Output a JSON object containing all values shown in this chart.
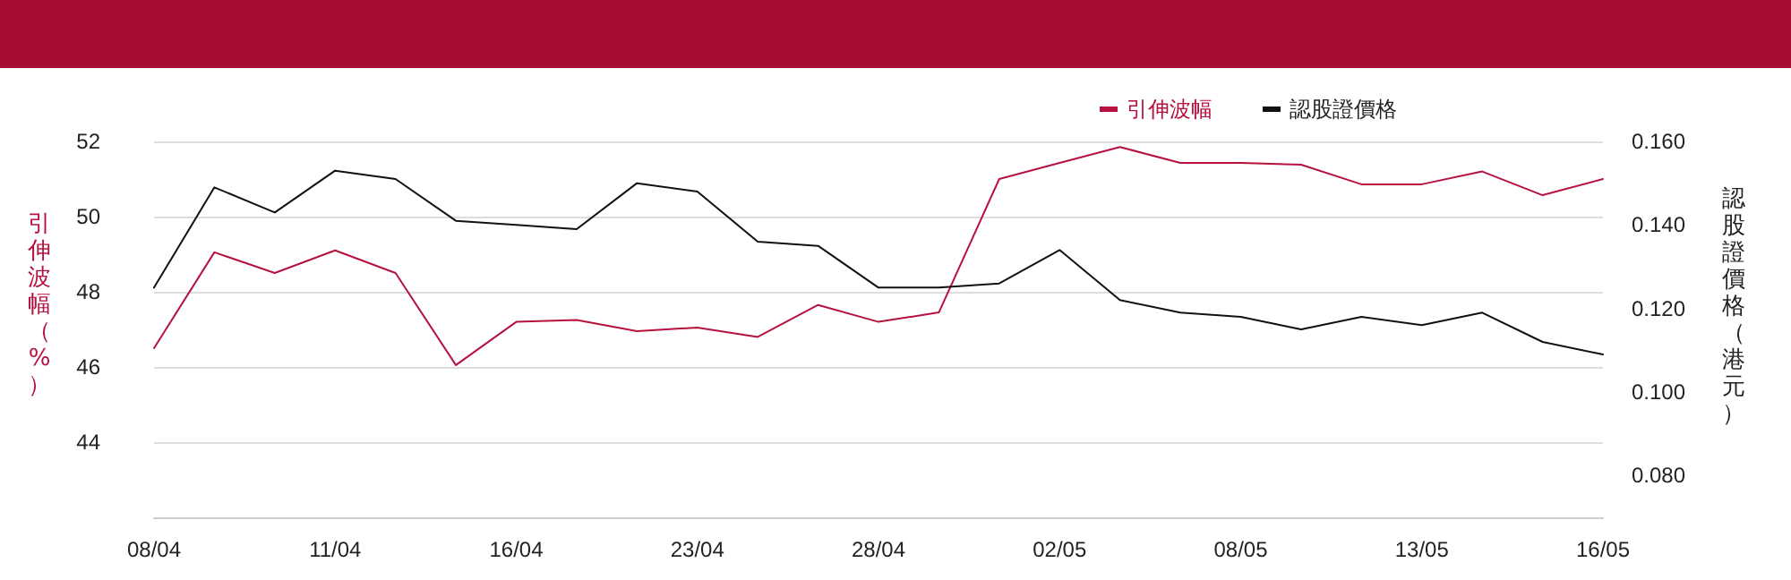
{
  "chart_data": {
    "type": "line",
    "categories": [
      "08/04",
      null,
      null,
      "11/04",
      null,
      null,
      "16/04",
      null,
      null,
      "23/04",
      null,
      null,
      "28/04",
      null,
      null,
      "02/05",
      null,
      null,
      "08/05",
      null,
      null,
      "13/05",
      null,
      null,
      "16/05"
    ],
    "series": [
      {
        "name": "引伸波幅",
        "color": "#b5123f",
        "values": [
          46.5,
          49.05,
          48.5,
          49.1,
          48.5,
          46.05,
          47.2,
          47.25,
          46.95,
          47.05,
          46.8,
          47.65,
          47.2,
          47.45,
          51.0,
          51.43,
          51.85,
          51.43,
          51.43,
          51.38,
          50.86,
          50.86,
          51.2,
          50.57,
          51.0
        ]
      },
      {
        "name": "認股證價格",
        "color": "#111111",
        "axis": "y2",
        "values": [
          0.125,
          0.149,
          0.143,
          0.153,
          0.151,
          0.141,
          0.14,
          0.139,
          0.15,
          0.148,
          0.136,
          0.135,
          0.125,
          0.125,
          0.126,
          0.134,
          0.122,
          0.119,
          0.118,
          0.115,
          0.118,
          0.116,
          0.119,
          0.112,
          0.109
        ]
      }
    ],
    "ylabel": "引伸波幅（%）",
    "y2label": "認股證價格（港元）",
    "ylim": [
      42,
      52
    ],
    "yticks": [
      44,
      46,
      48,
      50,
      52
    ],
    "y2lim": [
      0.07,
      0.16
    ],
    "y2ticks": [
      {
        "value": 0.08,
        "label": "0.080"
      },
      {
        "value": 0.1,
        "label": "0.100"
      },
      {
        "value": 0.12,
        "label": "0.120"
      },
      {
        "value": 0.14,
        "label": "0.140"
      },
      {
        "value": 0.16,
        "label": "0.160"
      }
    ],
    "grid": "y",
    "legend": "top right",
    "marker": "none",
    "line_style": "solid"
  }
}
